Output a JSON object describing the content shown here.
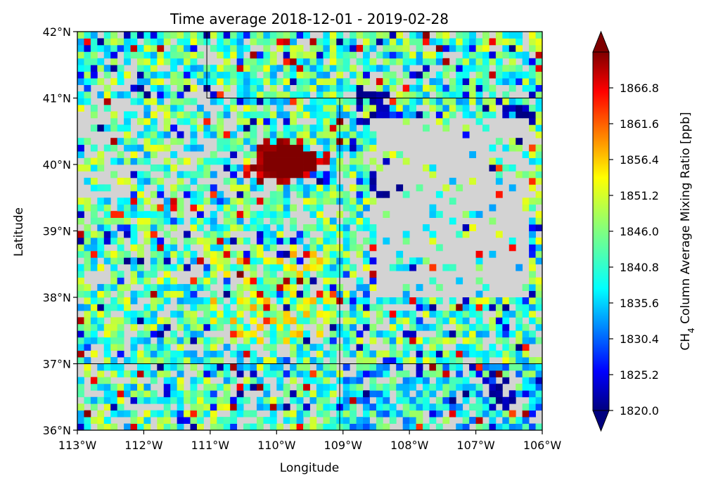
{
  "chart_data": {
    "type": "heatmap",
    "title": "Time average 2018-12-01 - 2019-02-28",
    "xlabel": "Longitude",
    "ylabel": "Latitude",
    "xlim": [
      -113,
      -106
    ],
    "ylim": [
      36,
      42
    ],
    "x_ticks": [
      {
        "value": -113,
        "label": "113°W"
      },
      {
        "value": -112,
        "label": "112°W"
      },
      {
        "value": -111,
        "label": "111°W"
      },
      {
        "value": -110,
        "label": "110°W"
      },
      {
        "value": -109,
        "label": "109°W"
      },
      {
        "value": -108,
        "label": "108°W"
      },
      {
        "value": -107,
        "label": "107°W"
      },
      {
        "value": -106,
        "label": "106°W"
      }
    ],
    "y_ticks": [
      {
        "value": 36,
        "label": "36°N"
      },
      {
        "value": 37,
        "label": "37°N"
      },
      {
        "value": 38,
        "label": "38°N"
      },
      {
        "value": 39,
        "label": "39°N"
      },
      {
        "value": 40,
        "label": "40°N"
      },
      {
        "value": 41,
        "label": "41°N"
      },
      {
        "value": 42,
        "label": "42°N"
      }
    ],
    "colorbar": {
      "label_prefix": "CH",
      "label_sub": "4",
      "label_suffix": " Column Average Mixing Ratio [ppb]",
      "min": 1820.0,
      "max": 1872.0,
      "extend": "both",
      "colormap": "jet",
      "ticks": [
        {
          "value": 1820.0,
          "label": "1820.0"
        },
        {
          "value": 1825.2,
          "label": "1825.2"
        },
        {
          "value": 1830.4,
          "label": "1830.4"
        },
        {
          "value": 1835.6,
          "label": "1835.6"
        },
        {
          "value": 1840.8,
          "label": "1840.8"
        },
        {
          "value": 1846.0,
          "label": "1846.0"
        },
        {
          "value": 1851.2,
          "label": "1851.2"
        },
        {
          "value": 1856.4,
          "label": "1856.4"
        },
        {
          "value": 1861.6,
          "label": "1861.6"
        },
        {
          "value": 1866.8,
          "label": "1866.8"
        }
      ]
    },
    "missing_color": "#d3d3d3",
    "grid": {
      "lon_start": -113,
      "lon_end": -106,
      "lat_start": 36,
      "lat_end": 42,
      "cols": 70,
      "rows": 60
    },
    "features": {
      "hotspot": {
        "lon": -109.8,
        "lat": 40.05,
        "value": 1872,
        "note": "dark red high-value region"
      },
      "low_patches": [
        {
          "lon": -108.3,
          "lat": 39.8
        },
        {
          "lon": -108.6,
          "lat": 40.9
        },
        {
          "lon": -106.7,
          "lat": 36.6
        },
        {
          "lon": -106.4,
          "lat": 40.6
        }
      ],
      "mostly_missing_region": {
        "lon_min": -108.5,
        "lon_max": -106.2,
        "lat_min": 38.0,
        "lat_max": 40.8
      }
    },
    "borders": [
      [
        [
          -113,
          37
        ],
        [
          -106,
          37
        ]
      ],
      [
        [
          -109.05,
          36
        ],
        [
          -109.05,
          41
        ]
      ],
      [
        [
          -111.05,
          42
        ],
        [
          -111.05,
          41
        ],
        [
          -106,
          41
        ]
      ]
    ]
  }
}
